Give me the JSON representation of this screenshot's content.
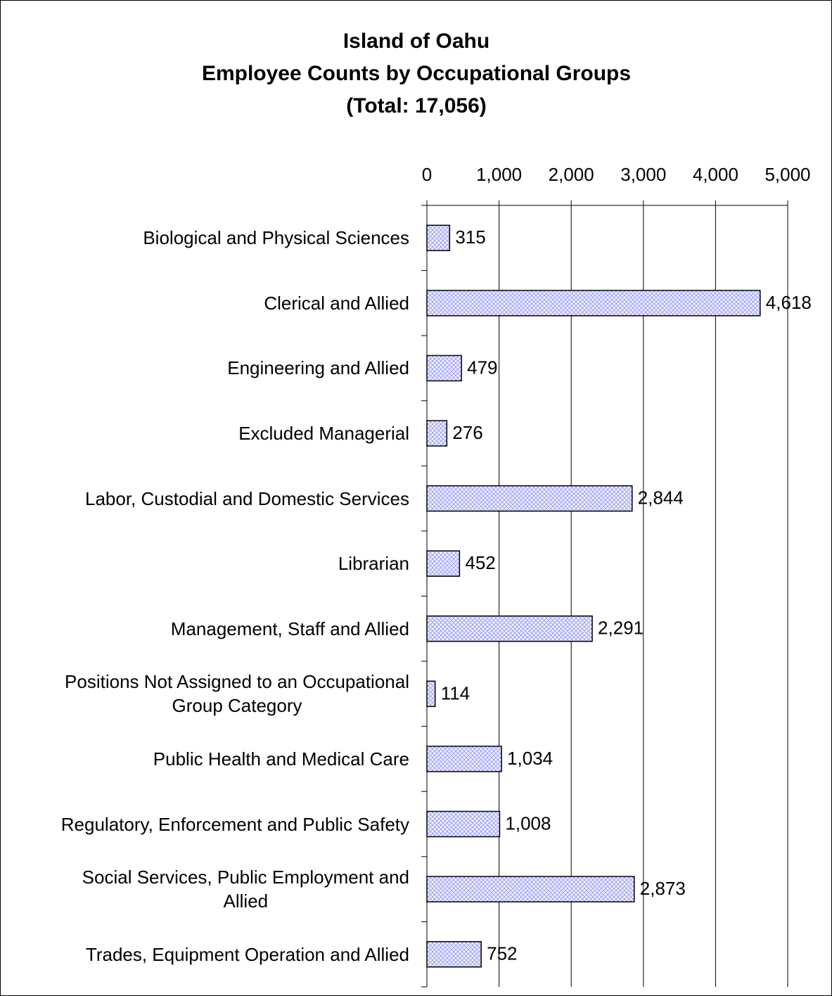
{
  "chart_data": {
    "type": "barh",
    "title": [
      "Island of Oahu",
      "Employee Counts by Occupational Groups",
      "(Total:  17,056)"
    ],
    "categories": [
      "Biological and Physical Sciences",
      "Clerical and Allied",
      "Engineering and Allied",
      "Excluded Managerial",
      "Labor, Custodial and Domestic Services",
      "Librarian",
      "Management, Staff and Allied",
      "Positions Not Assigned to an Occupational\nGroup Category",
      "Public Health and Medical Care",
      "Regulatory, Enforcement and Public Safety",
      "Social Services, Public Employment and\nAllied",
      "Trades, Equipment Operation and Allied"
    ],
    "values": [
      315,
      4618,
      479,
      276,
      2844,
      452,
      2291,
      114,
      1034,
      1008,
      2873,
      752
    ],
    "value_labels": [
      "315",
      "4,618",
      "479",
      "276",
      "2,844",
      "452",
      "2,291",
      "114",
      "1,034",
      "1,008",
      "2,873",
      "752"
    ],
    "color": "#9999ff",
    "xlim": [
      0,
      5000
    ],
    "xticks": [
      0,
      {
        "value": 1000,
        "label": "1,000"
      },
      {
        "value": 2000,
        "label": "2,000"
      },
      {
        "value": 3000,
        "label": "3,000"
      },
      {
        "value": 4000,
        "label": "4,000"
      },
      {
        "value": 5000,
        "label": "5,000"
      }
    ],
    "grid": true
  }
}
